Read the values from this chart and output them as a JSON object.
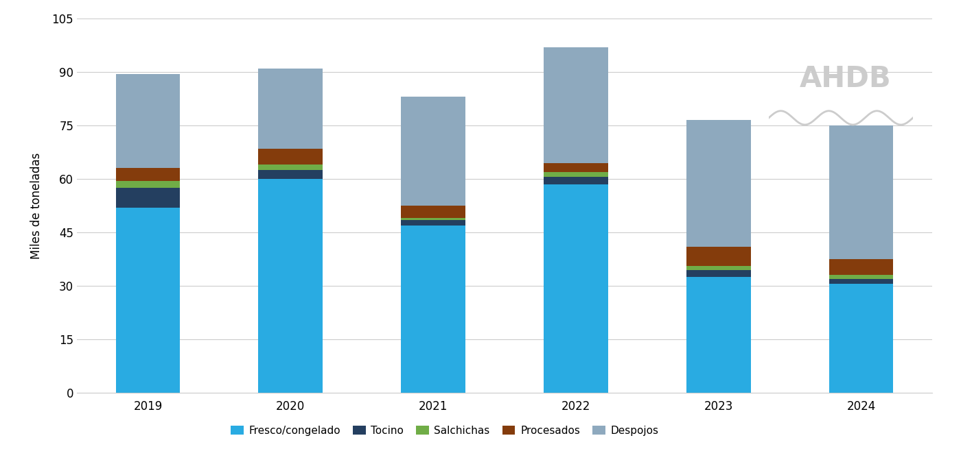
{
  "years": [
    "2019",
    "2020",
    "2021",
    "2022",
    "2023",
    "2024"
  ],
  "fresco_congelado": [
    52.0,
    60.0,
    47.0,
    58.5,
    32.5,
    30.5
  ],
  "tocino": [
    5.5,
    2.5,
    1.5,
    2.0,
    2.0,
    1.5
  ],
  "salchichas": [
    2.0,
    1.5,
    0.5,
    1.5,
    1.0,
    1.0
  ],
  "procesados": [
    3.5,
    4.5,
    3.5,
    2.5,
    5.5,
    4.5
  ],
  "despojos": [
    26.5,
    22.5,
    30.5,
    32.5,
    35.5,
    37.5
  ],
  "colors": {
    "fresco_congelado": "#29ABE2",
    "tocino": "#243F60",
    "salchichas": "#70AD47",
    "procesados": "#843C0C",
    "despojos": "#8EA9BE"
  },
  "labels": {
    "fresco_congelado": "Fresco/congelado",
    "tocino": "Tocino",
    "salchichas": "Salchichas",
    "procesados": "Procesados",
    "despojos": "Despojos"
  },
  "ylabel": "Miles de toneladas",
  "ylim": [
    0,
    105
  ],
  "yticks": [
    0,
    15,
    30,
    45,
    60,
    75,
    90,
    105
  ],
  "background_color": "#FFFFFF",
  "grid_color": "#CCCCCC",
  "bar_width": 0.45
}
